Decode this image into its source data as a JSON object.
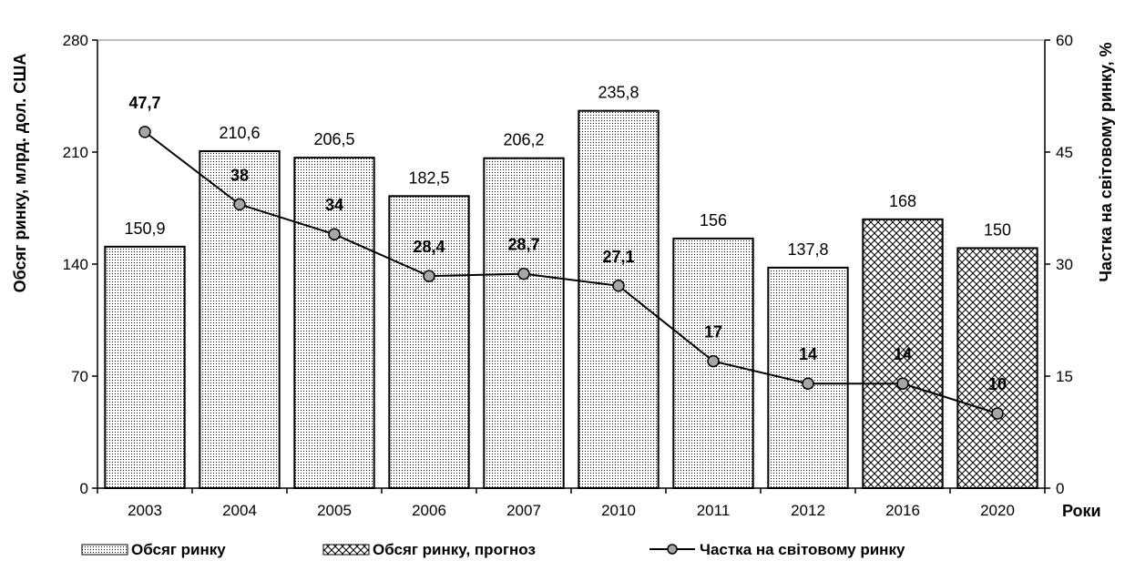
{
  "chart_data": {
    "type": "bar",
    "categories": [
      "2003",
      "2004",
      "2005",
      "2006",
      "2007",
      "2010",
      "2011",
      "2012",
      "2016",
      "2020"
    ],
    "xlabel": "Роки",
    "ylabel": "Обсяг ринку, млрд. дол. США",
    "y2label": "Частка на світовому ринку, %",
    "ylim": [
      0,
      280
    ],
    "y_ticks": [
      0,
      70,
      140,
      210,
      280
    ],
    "y2lim": [
      0,
      60
    ],
    "y2_ticks": [
      0,
      15,
      30,
      45,
      60
    ],
    "grid": false,
    "legend_position": "bottom",
    "series": [
      {
        "name": "Обсяг ринку",
        "type": "bar",
        "axis": "left",
        "pattern": "dots",
        "values": [
          150.9,
          210.6,
          206.5,
          182.5,
          206.2,
          235.8,
          156,
          137.8,
          null,
          null
        ],
        "labels": [
          "150,9",
          "210,6",
          "206,5",
          "182,5",
          "206,2",
          "235,8",
          "156",
          "137,8",
          "",
          ""
        ]
      },
      {
        "name": "Обсяг ринку, прогноз",
        "type": "bar",
        "axis": "left",
        "pattern": "crosshatch",
        "values": [
          null,
          null,
          null,
          null,
          null,
          null,
          null,
          null,
          168,
          150
        ],
        "labels": [
          "",
          "",
          "",
          "",
          "",
          "",
          "",
          "",
          "168",
          "150"
        ]
      },
      {
        "name": "Частка на світовому ринку",
        "type": "line",
        "axis": "right",
        "marker": "circle",
        "values": [
          47.7,
          38,
          34,
          28.4,
          28.7,
          27.1,
          17,
          14,
          14,
          10
        ],
        "labels": [
          "47,7",
          "38",
          "34",
          "28,4",
          "28,7",
          "27,1",
          "17",
          "14",
          "14",
          "10"
        ]
      }
    ],
    "colors": {
      "bar_outline": "#000000",
      "marker_fill": "#a6a6a6",
      "line": "#000000"
    }
  }
}
